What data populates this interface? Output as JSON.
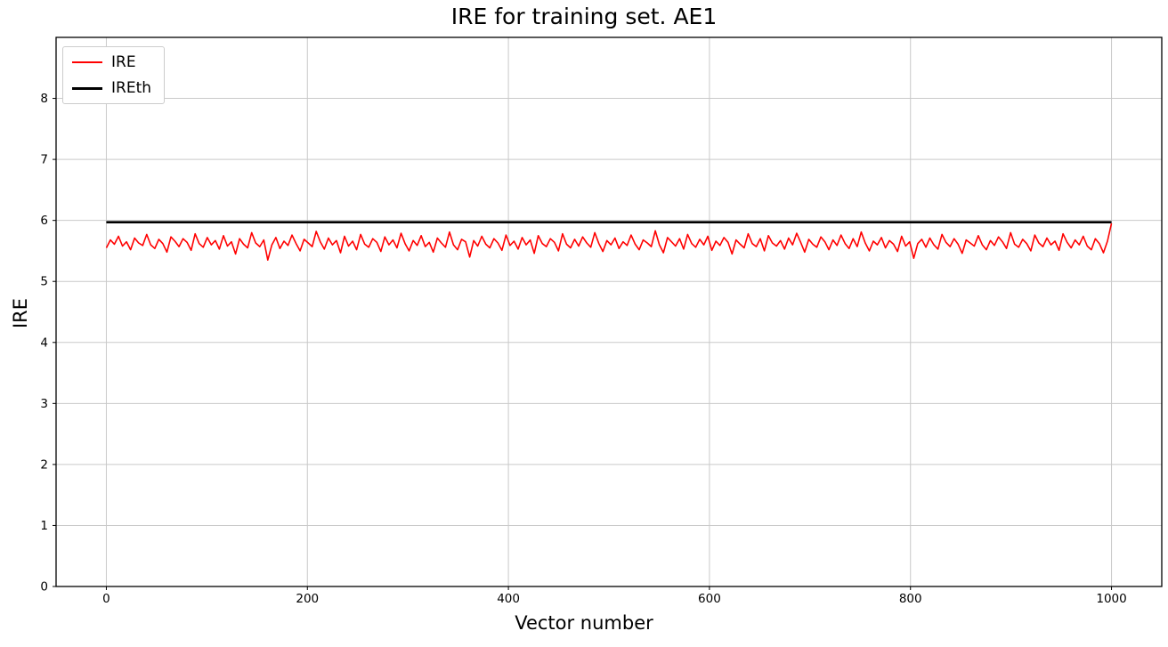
{
  "chart_data": {
    "type": "line",
    "title": "IRE for training set. AE1",
    "xlabel": "Vector number",
    "ylabel": "IRE",
    "xlim": [
      -50,
      1050
    ],
    "ylim": [
      0,
      9.0
    ],
    "x_ticks": [
      0,
      200,
      400,
      600,
      800,
      1000
    ],
    "y_ticks": [
      0,
      1,
      2,
      3,
      4,
      5,
      6,
      7,
      8
    ],
    "grid": true,
    "grid_color": "#c9c9c9",
    "legend": {
      "position": "upper-left",
      "entries": [
        {
          "label": "IRE",
          "color": "#ff0000"
        },
        {
          "label": "IREth",
          "color": "#000000"
        }
      ]
    },
    "series": [
      {
        "name": "IRE",
        "type": "noisy-line",
        "color": "#ff0000",
        "x_start": 0,
        "x_end": 1000,
        "approx_mean": 5.65,
        "approx_min": 5.35,
        "approx_max": 5.95,
        "values": [
          5.55,
          5.68,
          5.61,
          5.74,
          5.58,
          5.65,
          5.52,
          5.71,
          5.63,
          5.59,
          5.77,
          5.6,
          5.54,
          5.69,
          5.62,
          5.48,
          5.73,
          5.66,
          5.57,
          5.7,
          5.64,
          5.51,
          5.78,
          5.62,
          5.56,
          5.72,
          5.6,
          5.67,
          5.53,
          5.75,
          5.58,
          5.65,
          5.45,
          5.7,
          5.61,
          5.55,
          5.8,
          5.63,
          5.57,
          5.68,
          5.35,
          5.6,
          5.72,
          5.54,
          5.66,
          5.59,
          5.76,
          5.62,
          5.5,
          5.69,
          5.63,
          5.57,
          5.82,
          5.65,
          5.53,
          5.71,
          5.6,
          5.67,
          5.47,
          5.74,
          5.58,
          5.66,
          5.52,
          5.77,
          5.61,
          5.56,
          5.7,
          5.64,
          5.49,
          5.73,
          5.6,
          5.68,
          5.55,
          5.79,
          5.62,
          5.5,
          5.67,
          5.59,
          5.75,
          5.57,
          5.64,
          5.48,
          5.71,
          5.63,
          5.56,
          5.81,
          5.6,
          5.52,
          5.69,
          5.65,
          5.4,
          5.67,
          5.58,
          5.74,
          5.61,
          5.55,
          5.7,
          5.63,
          5.51,
          5.76,
          5.59,
          5.66,
          5.53,
          5.72,
          5.6,
          5.68,
          5.46,
          5.75,
          5.62,
          5.57,
          5.7,
          5.64,
          5.5,
          5.78,
          5.61,
          5.55,
          5.69,
          5.58,
          5.73,
          5.63,
          5.56,
          5.8,
          5.62,
          5.49,
          5.67,
          5.6,
          5.71,
          5.54,
          5.65,
          5.59,
          5.76,
          5.61,
          5.52,
          5.68,
          5.63,
          5.57,
          5.83,
          5.6,
          5.47,
          5.72,
          5.65,
          5.58,
          5.7,
          5.53,
          5.77,
          5.62,
          5.56,
          5.69,
          5.6,
          5.74,
          5.51,
          5.66,
          5.59,
          5.72,
          5.64,
          5.45,
          5.68,
          5.61,
          5.55,
          5.78,
          5.62,
          5.57,
          5.7,
          5.5,
          5.75,
          5.63,
          5.58,
          5.67,
          5.53,
          5.71,
          5.6,
          5.79,
          5.64,
          5.48,
          5.69,
          5.61,
          5.56,
          5.73,
          5.65,
          5.52,
          5.68,
          5.59,
          5.76,
          5.62,
          5.54,
          5.7,
          5.57,
          5.81,
          5.63,
          5.5,
          5.66,
          5.6,
          5.72,
          5.55,
          5.67,
          5.61,
          5.49,
          5.74,
          5.58,
          5.65,
          5.38,
          5.62,
          5.69,
          5.56,
          5.71,
          5.6,
          5.53,
          5.77,
          5.64,
          5.57,
          5.7,
          5.61,
          5.46,
          5.68,
          5.63,
          5.58,
          5.75,
          5.6,
          5.52,
          5.67,
          5.59,
          5.73,
          5.65,
          5.54,
          5.8,
          5.61,
          5.56,
          5.69,
          5.62,
          5.5,
          5.76,
          5.63,
          5.57,
          5.71,
          5.6,
          5.66,
          5.51,
          5.78,
          5.64,
          5.55,
          5.68,
          5.6,
          5.74,
          5.58,
          5.52,
          5.7,
          5.62,
          5.47,
          5.66,
          5.95
        ]
      },
      {
        "name": "IREth",
        "type": "constant-threshold",
        "color": "#000000",
        "value": 5.97,
        "x_start": 0,
        "x_end": 1000
      }
    ]
  }
}
